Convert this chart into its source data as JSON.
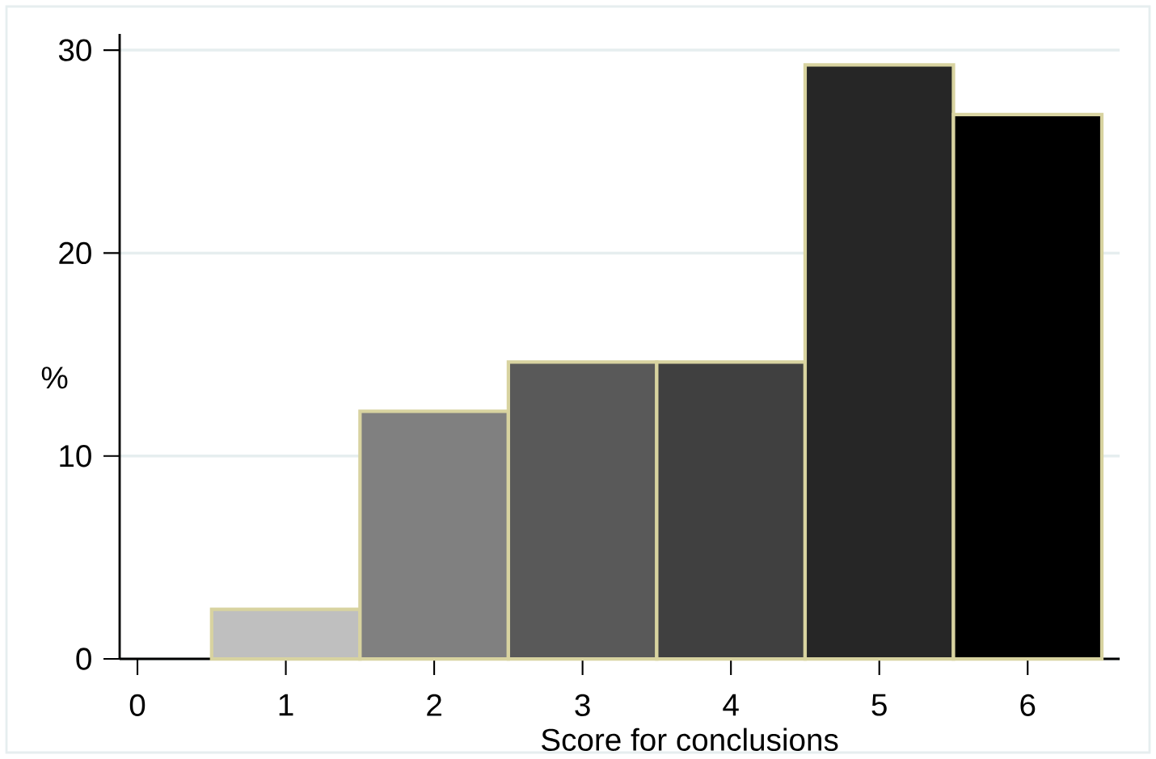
{
  "chart_data": {
    "type": "histogram",
    "xlabel": "Score for conclusions",
    "ylabel": "%",
    "bins": [
      0.5,
      1.5,
      2.5,
      3.5,
      4.5,
      5.5,
      6.5
    ],
    "values": [
      2.44,
      12.2,
      14.63,
      14.63,
      29.27,
      26.83
    ],
    "colors": [
      "#bfbfbf",
      "#808080",
      "#595959",
      "#404040",
      "#262626",
      "#000000"
    ],
    "xlim": [
      -0.12,
      6.62
    ],
    "ylim": [
      0,
      30.8
    ],
    "xticks": [
      0,
      1,
      2,
      3,
      4,
      5,
      6
    ],
    "yticks": [
      0,
      10,
      20,
      30
    ],
    "grid": "y"
  }
}
